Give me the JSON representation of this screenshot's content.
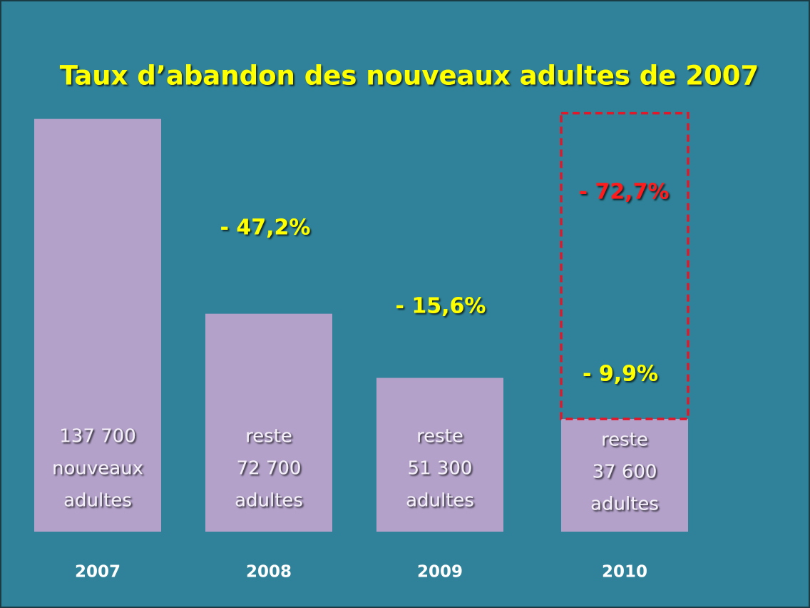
{
  "chart_data": {
    "type": "bar",
    "title": "Taux d’abandon des nouveaux adultes de 2007",
    "categories": [
      "2007",
      "2008",
      "2009",
      "2010"
    ],
    "values": [
      137700,
      72700,
      51300,
      37600
    ],
    "value_labels": [
      "137 700",
      "72 700",
      "51 300",
      "37 600"
    ],
    "labels_above_value": [
      [],
      [
        "reste"
      ],
      [
        "reste"
      ],
      [
        "reste"
      ]
    ],
    "labels_below_value": [
      [
        "nouveaux",
        "adultes"
      ],
      [
        "adultes"
      ],
      [
        "adultes"
      ],
      [
        "adultes"
      ]
    ],
    "color": "#b3a1c9",
    "ylim": [
      0,
      140000
    ],
    "annotations": [
      {
        "text": "- 47,2%",
        "color": "#ffff00"
      },
      {
        "text": "- 15,6%",
        "color": "#ffff00"
      },
      {
        "text": "- 9,9%",
        "color": "#ffff00"
      },
      {
        "text": "- 72,7%",
        "color": "#ff1a1a"
      }
    ]
  }
}
